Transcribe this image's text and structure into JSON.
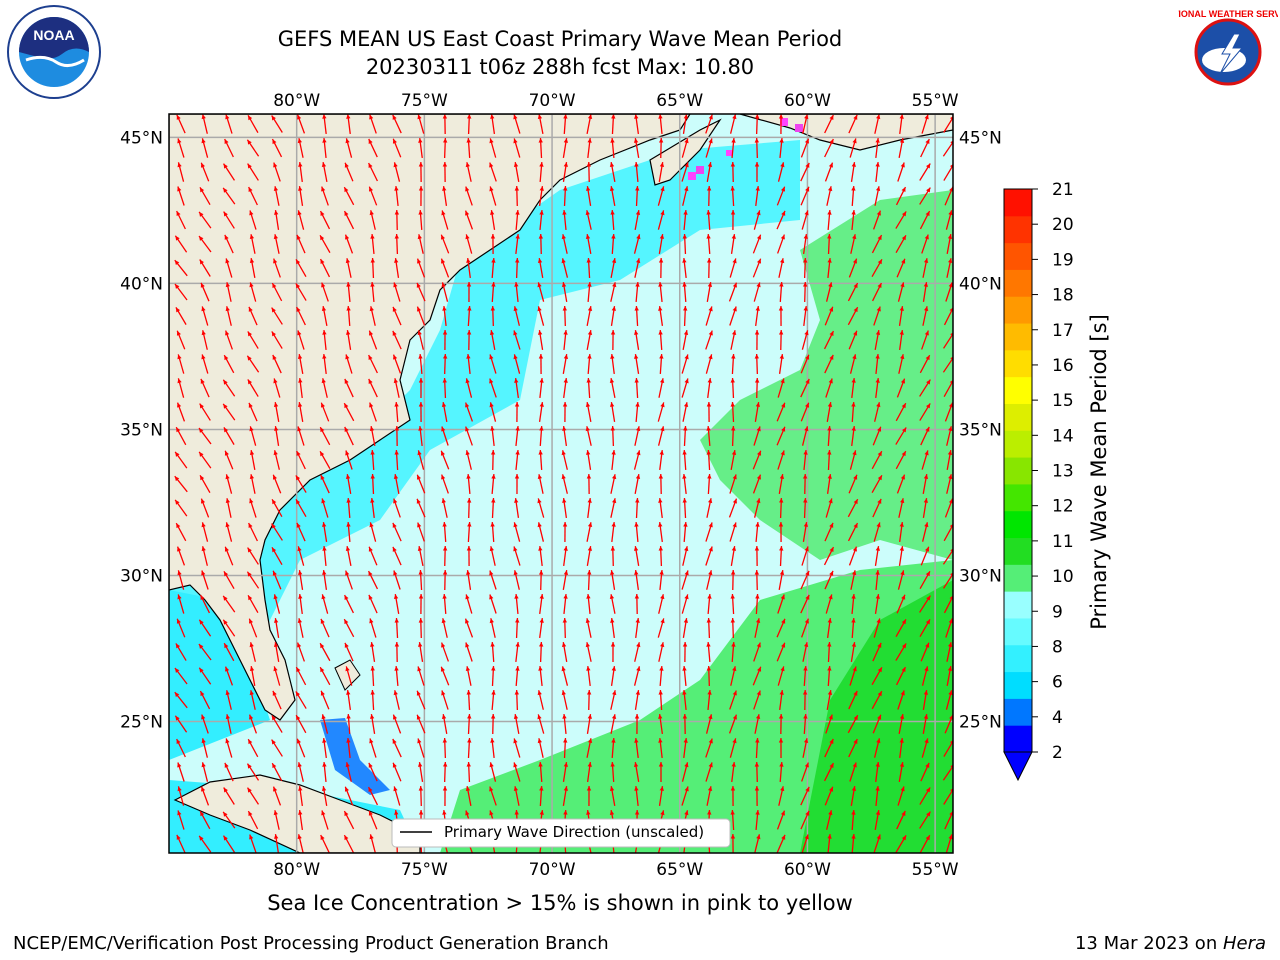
{
  "header": {
    "title_line1": "GEFS MEAN US East Coast Primary Wave Mean Period",
    "title_line2": "20230311 t06z 288h fcst   Max: 10.80"
  },
  "logos": {
    "left_text": "NOAA",
    "right_text": "NATIONAL WEATHER SERVICE"
  },
  "map": {
    "extent": {
      "lon": [
        -85,
        -54.3
      ],
      "lat": [
        20.5,
        45.8
      ]
    },
    "lon_ticks": [
      "80°W",
      "75°W",
      "70°W",
      "65°W",
      "60°W",
      "55°W"
    ],
    "lat_ticks": [
      "45°N",
      "40°N",
      "35°N",
      "30°N",
      "25°N"
    ],
    "lon_values": [
      -80,
      -75,
      -70,
      -65,
      -60,
      -55
    ],
    "lat_values": [
      45,
      40,
      35,
      30,
      25
    ],
    "grid": true,
    "land_color": "#efecdc",
    "vector_color": "#ff0000",
    "legend_label": "Primary Wave Direction (unscaled)"
  },
  "colorbar": {
    "label": "Primary Wave Mean Period [s]",
    "ticks": [
      "21",
      "20",
      "19",
      "18",
      "17",
      "16",
      "15",
      "14",
      "13",
      "12",
      "11",
      "10",
      "9",
      "8",
      "6",
      "4",
      "2"
    ],
    "colors": [
      "#0000ff",
      "#0077ff",
      "#00ddff",
      "#33f0ff",
      "#66fbff",
      "#99ffff",
      "#55ee77",
      "#22dd22",
      "#00e600",
      "#44e600",
      "#88e600",
      "#bbee00",
      "#ddee00",
      "#ffff00",
      "#ffdd00",
      "#ffbb00",
      "#ff9900",
      "#ff7700",
      "#ff5500",
      "#ff3300",
      "#ff1100"
    ]
  },
  "caption": "Sea Ice Concentration > 15% is shown in pink to yellow",
  "footer": {
    "left": "NCEP/EMC/Verification Post Processing Product Generation Branch",
    "date": "13 Mar 2023 on ",
    "machine": "Hera"
  }
}
